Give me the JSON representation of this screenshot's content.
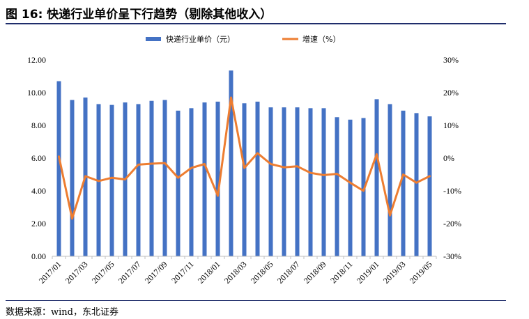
{
  "figure": {
    "title": "图 16: 快递行业单价呈下行趋势（剔除其他收入）",
    "source": "数据来源：wind，东北证券"
  },
  "colors": {
    "bar": "#4472C4",
    "line": "#ED7D31",
    "rule": "#1f2d6b",
    "axis": "#bfbfbf"
  },
  "chart_data": {
    "type": "bar",
    "categories": [
      "2017/01",
      "2017/02",
      "2017/03",
      "2017/04",
      "2017/05",
      "2017/06",
      "2017/07",
      "2017/08",
      "2017/09",
      "2017/10",
      "2017/11",
      "2017/12",
      "2018/01",
      "2018/02",
      "2018/03",
      "2018/04",
      "2018/05",
      "2018/06",
      "2018/07",
      "2018/08",
      "2018/09",
      "2018/10",
      "2018/11",
      "2018/12",
      "2019/01",
      "2019/02",
      "2019/03",
      "2019/04",
      "2019/05"
    ],
    "x_tick_labels": [
      "2017/01",
      "2017/03",
      "2017/05",
      "2017/07",
      "2017/09",
      "2017/11",
      "2018/01",
      "2018/03",
      "2018/05",
      "2018/07",
      "2018/09",
      "2018/11",
      "2019/01",
      "2019/03",
      "2019/05"
    ],
    "series": [
      {
        "name": "快递行业单价（元）",
        "type": "bar",
        "axis": "left",
        "values": [
          10.7,
          9.55,
          9.7,
          9.3,
          9.25,
          9.4,
          9.3,
          9.5,
          9.55,
          8.9,
          9.05,
          9.4,
          9.45,
          11.35,
          9.35,
          9.45,
          9.1,
          9.1,
          9.1,
          9.05,
          9.05,
          8.5,
          8.35,
          8.45,
          9.6,
          9.3,
          8.9,
          8.75,
          8.55
        ]
      },
      {
        "name": "增速（%）",
        "type": "line",
        "axis": "right",
        "values": [
          0.5,
          -18.5,
          -5.5,
          -7.0,
          -6.0,
          -6.5,
          -2.0,
          -1.7,
          -1.5,
          -6.0,
          -3.0,
          -1.8,
          -11.5,
          18.5,
          -3.0,
          1.5,
          -1.8,
          -2.8,
          -2.5,
          -4.5,
          -5.2,
          -4.8,
          -7.5,
          -10.0,
          1.2,
          -17.5,
          -5.0,
          -7.5,
          -5.5
        ]
      }
    ],
    "y_left": {
      "min": 0,
      "max": 12,
      "ticks": [
        "0.00",
        "2.00",
        "4.00",
        "6.00",
        "8.00",
        "10.00",
        "12.00"
      ]
    },
    "y_right": {
      "min": -30,
      "max": 30,
      "ticks": [
        "-30%",
        "-20%",
        "-10%",
        "0%",
        "10%",
        "20%",
        "30%"
      ]
    },
    "legend_position": "top-center",
    "grid": false
  }
}
